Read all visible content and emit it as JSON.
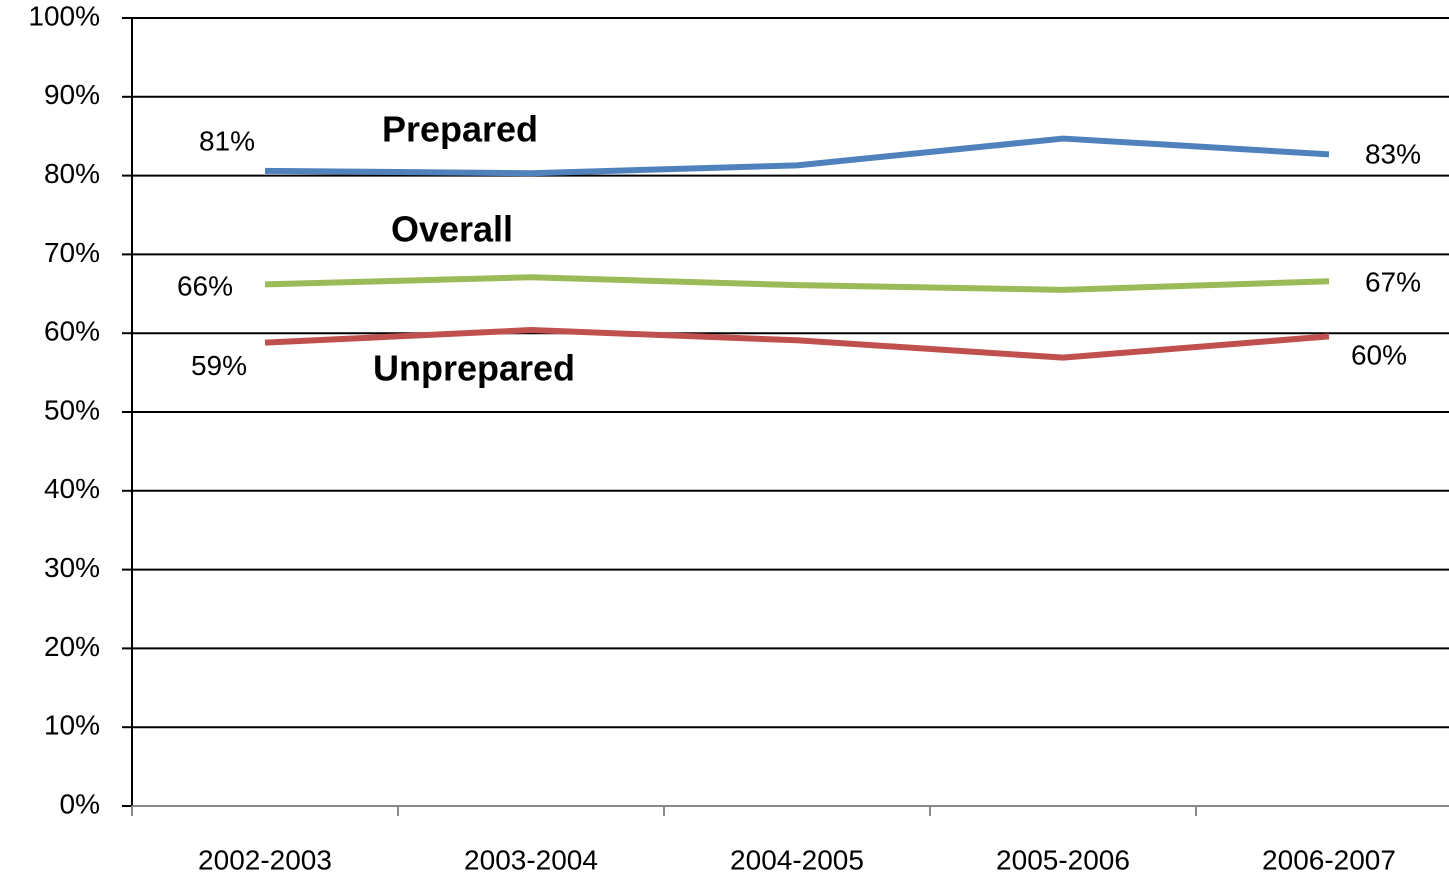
{
  "chart_data": {
    "type": "line",
    "categories": [
      "2002-2003",
      "2003-2004",
      "2004-2005",
      "2005-2006",
      "2006-2007"
    ],
    "series": [
      {
        "name": "Prepared",
        "color": "#4f81bd",
        "values": [
          80.6,
          80.3,
          81.3,
          84.7,
          82.7
        ],
        "value_labels": [
          "81%",
          null,
          null,
          null,
          "83%"
        ]
      },
      {
        "name": "Overall",
        "color": "#9bbb59",
        "values": [
          66.2,
          67.1,
          66.1,
          65.5,
          66.6
        ],
        "value_labels": [
          "66%",
          null,
          null,
          null,
          "67%"
        ]
      },
      {
        "name": "Unprepared",
        "color": "#c0504d",
        "values": [
          58.8,
          60.4,
          59.1,
          56.9,
          59.6
        ],
        "value_labels": [
          "59%",
          null,
          null,
          null,
          "60%"
        ]
      }
    ],
    "ylim": [
      0,
      100
    ],
    "yticks": [
      {
        "value": 0,
        "label": "0%"
      },
      {
        "value": 10,
        "label": "10%"
      },
      {
        "value": 20,
        "label": "20%"
      },
      {
        "value": 30,
        "label": "30%"
      },
      {
        "value": 40,
        "label": "40%"
      },
      {
        "value": 50,
        "label": "50%"
      },
      {
        "value": 60,
        "label": "60%"
      },
      {
        "value": 70,
        "label": "70%"
      },
      {
        "value": 80,
        "label": "80%"
      },
      {
        "value": 90,
        "label": "90%"
      },
      {
        "value": 100,
        "label": "100%"
      }
    ],
    "grid": true
  }
}
